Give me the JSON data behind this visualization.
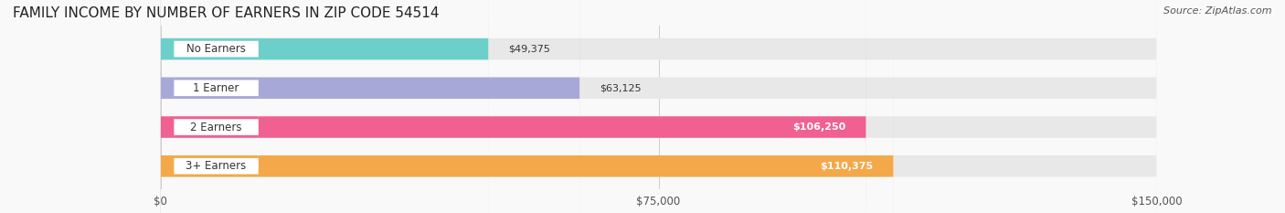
{
  "title": "FAMILY INCOME BY NUMBER OF EARNERS IN ZIP CODE 54514",
  "source": "Source: ZipAtlas.com",
  "categories": [
    "No Earners",
    "1 Earner",
    "2 Earners",
    "3+ Earners"
  ],
  "values": [
    49375,
    63125,
    106250,
    110375
  ],
  "bar_colors": [
    "#6dcfca",
    "#a8a8d8",
    "#f06090",
    "#f5a84a"
  ],
  "bar_bg_color": "#e8e8e8",
  "label_colors": [
    "#333333",
    "#333333",
    "#ffffff",
    "#ffffff"
  ],
  "xlim": [
    0,
    150000
  ],
  "xticks": [
    0,
    75000,
    150000
  ],
  "xtick_labels": [
    "$0",
    "$75,000",
    "$150,000"
  ],
  "value_labels": [
    "$49,375",
    "$63,125",
    "$106,250",
    "$110,375"
  ],
  "bg_color": "#f9f9f9",
  "title_fontsize": 11,
  "bar_height": 0.55,
  "figsize": [
    14.06,
    2.33
  ]
}
